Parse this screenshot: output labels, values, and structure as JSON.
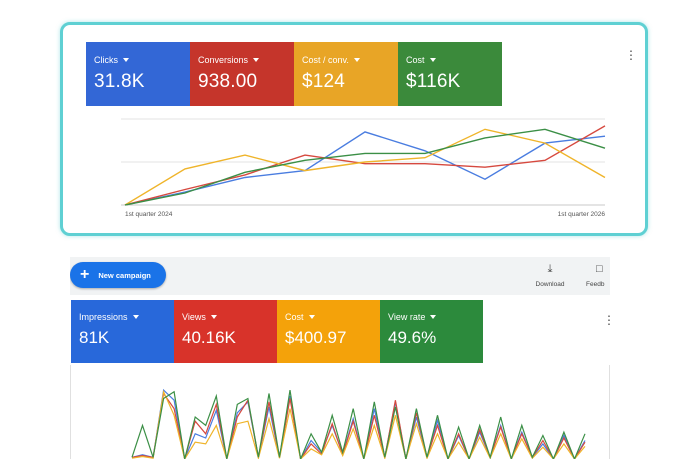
{
  "overview": {
    "metrics": [
      {
        "label": "Clicks",
        "value": "31.8K",
        "color": "#3367d6"
      },
      {
        "label": "Conversions",
        "value": "938.00",
        "color": "#c5352b"
      },
      {
        "label": "Cost / conv.",
        "value": "$124",
        "color": "#e8a526"
      },
      {
        "label": "Cost",
        "value": "$116K",
        "color": "#3b8a3b"
      }
    ],
    "more_icon": "vertical-dots-icon",
    "chart_data": {
      "type": "line",
      "x_labels": [
        "1st quarter 2024",
        "1st quarter 2026"
      ],
      "grid": true,
      "series": [
        {
          "metric": "Clicks",
          "color": "#4a7de0",
          "values": [
            0,
            15,
            32,
            40,
            85,
            63,
            30,
            72,
            80
          ]
        },
        {
          "metric": "Conversions",
          "color": "#d6493f",
          "values": [
            0,
            18,
            35,
            58,
            48,
            48,
            44,
            52,
            92
          ]
        },
        {
          "metric": "Cost / conv.",
          "color": "#efb42a",
          "values": [
            0,
            42,
            58,
            40,
            50,
            55,
            88,
            72,
            32
          ]
        },
        {
          "metric": "Cost",
          "color": "#3b8f46",
          "values": [
            0,
            14,
            38,
            52,
            60,
            60,
            78,
            88,
            66
          ]
        }
      ]
    }
  },
  "campaigns": {
    "new_campaign_label": "New campaign",
    "add_icon": "plus-icon",
    "toolbar": [
      {
        "label": "Download",
        "icon": "download-icon"
      },
      {
        "label": "Feedb",
        "icon": "feedback-icon"
      }
    ],
    "metrics": [
      {
        "label": "Impressions",
        "value": "81K",
        "color": "#2868da"
      },
      {
        "label": "Views",
        "value": "40.16K",
        "color": "#d8332a"
      },
      {
        "label": "Cost",
        "value": "$400.97",
        "color": "#f4a20a"
      },
      {
        "label": "View rate",
        "value": "49.6%",
        "color": "#2c8a3c"
      }
    ],
    "more_icon": "vertical-dots-icon",
    "chart_data": {
      "type": "line",
      "grid": false,
      "series": [
        {
          "metric": "Impressions",
          "color": "#4a7de0",
          "values": [
            2,
            5,
            2,
            82,
            70,
            0,
            30,
            25,
            58,
            0,
            55,
            68,
            2,
            62,
            2,
            75,
            0,
            22,
            8,
            40,
            6,
            48,
            0,
            60,
            2,
            68,
            0,
            50,
            2,
            46,
            0,
            28,
            0,
            32,
            2,
            40,
            0,
            32,
            2,
            18,
            0,
            28,
            0,
            22
          ]
        },
        {
          "metric": "Views",
          "color": "#d6493f",
          "values": [
            2,
            4,
            2,
            78,
            60,
            0,
            45,
            30,
            65,
            0,
            50,
            70,
            2,
            68,
            2,
            72,
            0,
            18,
            6,
            42,
            5,
            45,
            0,
            52,
            2,
            70,
            0,
            55,
            2,
            40,
            0,
            30,
            0,
            35,
            2,
            38,
            0,
            30,
            2,
            22,
            0,
            25,
            0,
            20
          ]
        },
        {
          "metric": "Cost",
          "color": "#efb42a",
          "values": [
            1,
            3,
            1,
            80,
            52,
            0,
            20,
            18,
            40,
            0,
            42,
            45,
            1,
            48,
            1,
            60,
            0,
            12,
            5,
            30,
            4,
            36,
            0,
            40,
            1,
            52,
            0,
            42,
            1,
            30,
            0,
            20,
            0,
            26,
            1,
            30,
            0,
            24,
            1,
            14,
            0,
            18,
            0,
            15
          ]
        },
        {
          "metric": "View rate",
          "color": "#3b8f46",
          "values": [
            2,
            40,
            2,
            72,
            80,
            0,
            50,
            40,
            75,
            0,
            65,
            72,
            2,
            78,
            2,
            82,
            0,
            30,
            8,
            52,
            8,
            60,
            0,
            68,
            2,
            62,
            0,
            60,
            2,
            52,
            0,
            38,
            0,
            40,
            2,
            50,
            0,
            40,
            2,
            28,
            0,
            32,
            0,
            30
          ]
        }
      ]
    }
  }
}
